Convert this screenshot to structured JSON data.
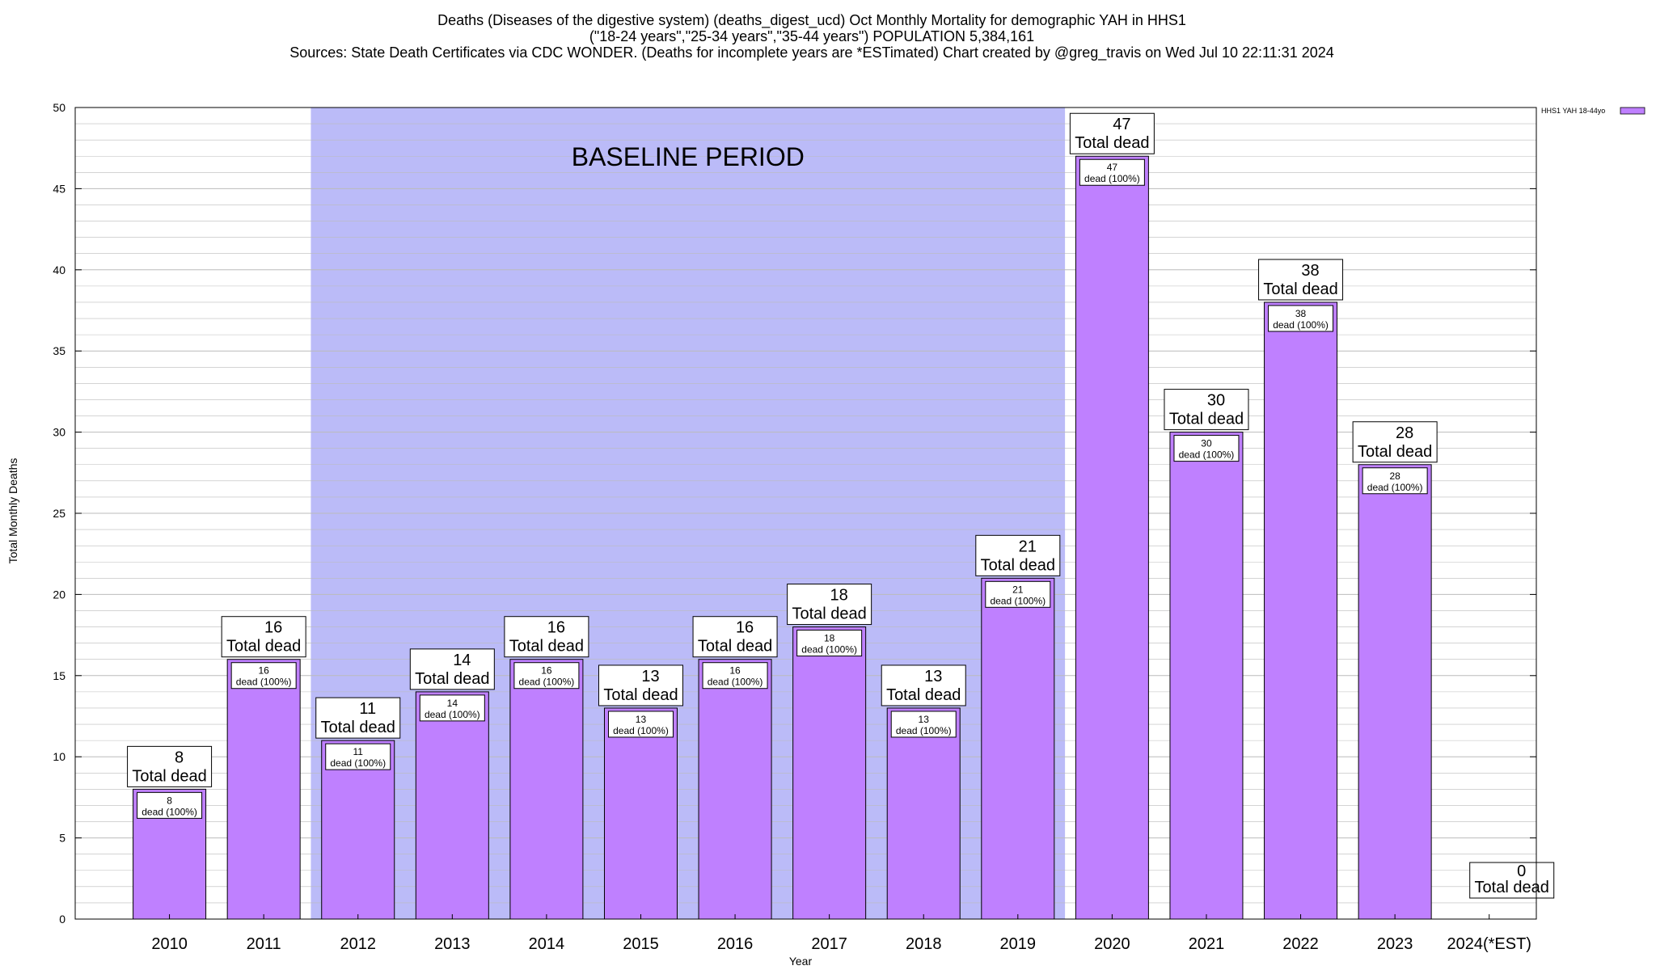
{
  "title_lines": [
    "Deaths (Diseases of the digestive system) (deaths_digest_ucd) Oct Monthly Mortality for demographic YAH in HHS1",
    "(\"18-24 years\",\"25-34 years\",\"35-44 years\") POPULATION 5,384,161",
    "Sources: State Death Certificates via CDC WONDER. (Deaths for incomplete years are *ESTimated)                Chart created by @greg_travis on Wed Jul 10 22:11:31 2024"
  ],
  "colors": {
    "bar": "#bf80ff",
    "baseline_band": "#bbbbf8",
    "grid": "#bbbbbb"
  },
  "chart_data": {
    "type": "bar",
    "xlabel": "Year",
    "ylabel": "Total Monthly Deaths",
    "ylim": [
      0,
      50
    ],
    "yticks": [
      0,
      5,
      10,
      15,
      20,
      25,
      30,
      35,
      40,
      45,
      50
    ],
    "grid": true,
    "legend_position": "top-right",
    "categories": [
      "2010",
      "2011",
      "2012",
      "2013",
      "2014",
      "2015",
      "2016",
      "2017",
      "2018",
      "2019",
      "2020",
      "2021",
      "2022",
      "2023",
      "2024(*EST)"
    ],
    "series": [
      {
        "name": "HHS1 YAH 18-44yo",
        "values": [
          8,
          16,
          11,
          14,
          16,
          13,
          16,
          18,
          13,
          21,
          47,
          30,
          38,
          28,
          0
        ]
      }
    ],
    "top_label_suffix": "Total dead",
    "inner_label_suffix": "dead (100%)",
    "baseline_period": {
      "label": "BASELINE PERIOD",
      "from": "2012",
      "to": "2019"
    }
  }
}
